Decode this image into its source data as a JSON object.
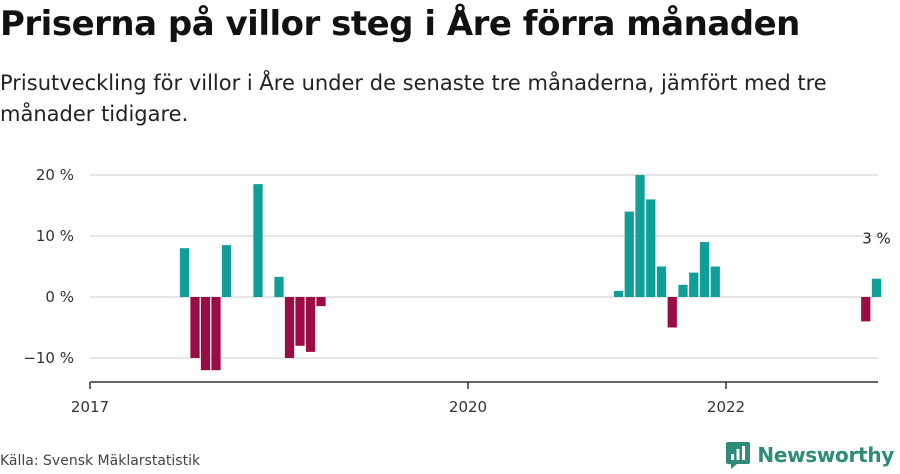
{
  "title": "Priserna på villor steg i Åre förra månaden",
  "subtitle": "Prisutveckling för villor i Åre under de senaste tre månaderna, jämfört med tre månader tidigare.",
  "source": "Källa: Svensk Mäklarstatistik",
  "brand": {
    "name": "Newsworthy",
    "icon": "newsworthy-logo-icon"
  },
  "colors": {
    "positive": "#0f9e98",
    "negative": "#9c0c44",
    "grid": "#dddddd",
    "axis": "#333333"
  },
  "chart_data": {
    "type": "bar",
    "title": "Priserna på villor steg i Åre förra månaden",
    "xlabel": "",
    "ylabel": "",
    "x_ticks": [
      "2017",
      "2020",
      "2022"
    ],
    "y_ticks": [
      "20 %",
      "10 %",
      "0 %",
      "−10 %"
    ],
    "y_tick_values": [
      20,
      10,
      0,
      -10
    ],
    "ylim": [
      -14,
      21
    ],
    "grid": true,
    "annotation": {
      "text": "3 %",
      "x": "2023-03",
      "y": 3
    },
    "series": [
      {
        "values": [
          {
            "x": "2017-10",
            "y": 8
          },
          {
            "x": "2017-11",
            "y": -10
          },
          {
            "x": "2017-12",
            "y": -12
          },
          {
            "x": "2018-01",
            "y": -12
          },
          {
            "x": "2018-02",
            "y": 8.5
          },
          {
            "x": "2018-05",
            "y": 18.5
          },
          {
            "x": "2018-07",
            "y": 3.3
          },
          {
            "x": "2018-08",
            "y": -10
          },
          {
            "x": "2018-09",
            "y": -8
          },
          {
            "x": "2018-10",
            "y": -9
          },
          {
            "x": "2018-11",
            "y": -1.5
          },
          {
            "x": "2021-03",
            "y": 1
          },
          {
            "x": "2021-04",
            "y": 14
          },
          {
            "x": "2021-05",
            "y": 20
          },
          {
            "x": "2021-06",
            "y": 16
          },
          {
            "x": "2021-07",
            "y": 5
          },
          {
            "x": "2021-08",
            "y": -5
          },
          {
            "x": "2021-09",
            "y": 2
          },
          {
            "x": "2021-10",
            "y": 4
          },
          {
            "x": "2021-11",
            "y": 9
          },
          {
            "x": "2021-12",
            "y": 5
          },
          {
            "x": "2023-02",
            "y": -4
          },
          {
            "x": "2023-03",
            "y": 3
          }
        ]
      }
    ]
  }
}
